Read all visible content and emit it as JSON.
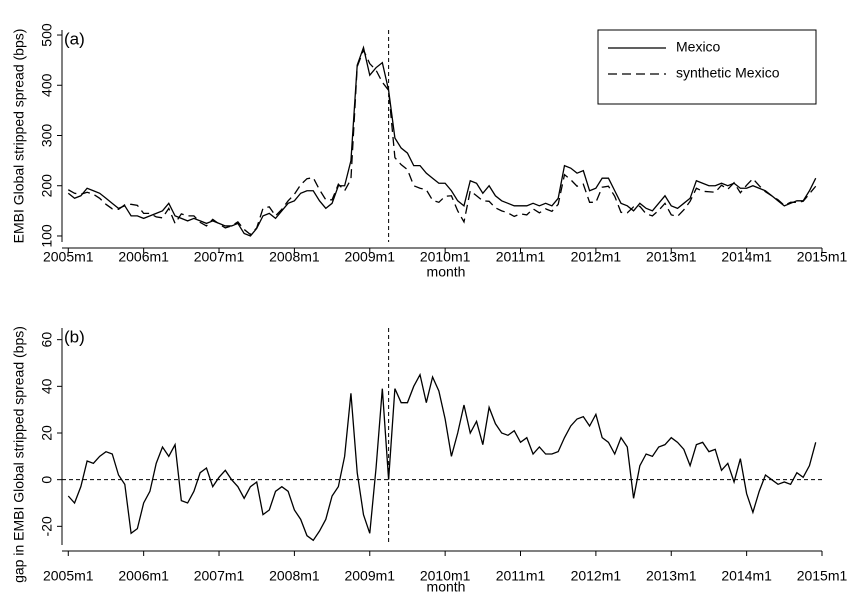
{
  "chart_data": [
    {
      "type": "line",
      "panel_label": "(a)",
      "ylabel": "EMBI Global stripped spread (bps)",
      "xlabel": "month",
      "x": [
        540,
        541,
        542,
        543,
        544,
        545,
        546,
        547,
        548,
        549,
        550,
        551,
        552,
        553,
        554,
        555,
        556,
        557,
        558,
        559,
        560,
        561,
        562,
        563,
        564,
        565,
        566,
        567,
        568,
        569,
        570,
        571,
        572,
        573,
        574,
        575,
        576,
        577,
        578,
        579,
        580,
        581,
        582,
        583,
        584,
        585,
        586,
        587,
        588,
        589,
        590,
        591,
        592,
        593,
        594,
        595,
        596,
        597,
        598,
        599,
        600,
        601,
        602,
        603,
        604,
        605,
        606,
        607,
        608,
        609,
        610,
        611,
        612,
        613,
        614,
        615,
        616,
        617,
        618,
        619,
        620,
        621,
        622,
        623,
        624,
        625,
        626,
        627,
        628,
        629,
        630,
        631,
        632,
        633,
        634,
        635,
        636,
        637,
        638,
        639,
        640,
        641,
        642,
        643,
        644,
        645,
        646,
        647,
        648,
        649,
        650,
        651,
        652,
        653,
        654,
        655,
        656,
        657,
        658,
        659
      ],
      "series": [
        {
          "name": "Mexico",
          "color": "#000000",
          "dashed": false,
          "values": [
            185,
            175,
            180,
            195,
            190,
            185,
            175,
            165,
            155,
            160,
            140,
            140,
            135,
            140,
            145,
            150,
            165,
            140,
            135,
            130,
            135,
            130,
            125,
            130,
            125,
            120,
            120,
            125,
            105,
            100,
            115,
            140,
            145,
            135,
            150,
            165,
            170,
            185,
            190,
            190,
            170,
            155,
            165,
            200,
            200,
            250,
            440,
            475,
            420,
            435,
            445,
            390,
            295,
            275,
            265,
            240,
            240,
            225,
            215,
            205,
            205,
            190,
            170,
            160,
            210,
            205,
            185,
            200,
            180,
            170,
            165,
            160,
            160,
            160,
            165,
            160,
            165,
            160,
            175,
            240,
            235,
            225,
            230,
            190,
            195,
            215,
            215,
            190,
            165,
            160,
            150,
            165,
            155,
            150,
            165,
            180,
            160,
            155,
            165,
            175,
            210,
            205,
            200,
            200,
            205,
            200,
            205,
            195,
            195,
            200,
            195,
            190,
            180,
            170,
            160,
            165,
            170,
            170,
            190,
            215
          ]
        },
        {
          "name": "synthetic Mexico",
          "color": "#000000",
          "dashed": true,
          "values": [
            192,
            185,
            183,
            187,
            183,
            175,
            163,
            154,
            153,
            162,
            163,
            161,
            145,
            145,
            138,
            136,
            155,
            125,
            144,
            140,
            140,
            127,
            120,
            133,
            124,
            116,
            120,
            128,
            113,
            103,
            116,
            155,
            158,
            140,
            153,
            170,
            183,
            202,
            214,
            216,
            192,
            172,
            172,
            203,
            190,
            213,
            437,
            470,
            443,
            430,
            406,
            390,
            256,
            242,
            232,
            200,
            195,
            192,
            171,
            167,
            179,
            180,
            150,
            128,
            190,
            180,
            170,
            169,
            156,
            150,
            146,
            139,
            144,
            142,
            154,
            146,
            154,
            149,
            163,
            222,
            212,
            199,
            203,
            167,
            167,
            197,
            199,
            179,
            147,
            146,
            158,
            159,
            144,
            140,
            151,
            165,
            142,
            139,
            152,
            169,
            195,
            189,
            188,
            187,
            201,
            193,
            206,
            186,
            201,
            214,
            200,
            188,
            180,
            172,
            161,
            167,
            167,
            169,
            184,
            199
          ]
        }
      ],
      "xlim": [
        539,
        660
      ],
      "xticks": [
        {
          "value": 540,
          "label": "2005m1"
        },
        {
          "value": 552,
          "label": "2006m1"
        },
        {
          "value": 564,
          "label": "2007m1"
        },
        {
          "value": 576,
          "label": "2008m1"
        },
        {
          "value": 588,
          "label": "2009m1"
        },
        {
          "value": 600,
          "label": "2010m1"
        },
        {
          "value": 612,
          "label": "2011m1"
        },
        {
          "value": 624,
          "label": "2012m1"
        },
        {
          "value": 636,
          "label": "2013m1"
        },
        {
          "value": 648,
          "label": "2014m1"
        },
        {
          "value": 660,
          "label": "2015m1"
        }
      ],
      "ylim": [
        88,
        510
      ],
      "yticks": [
        100,
        200,
        300,
        400,
        500
      ],
      "vline": 591,
      "legend": "top-right"
    },
    {
      "type": "line",
      "panel_label": "(b)",
      "ylabel": "gap in EMBI Global stripped spread (bps)",
      "xlabel": "month",
      "x": [
        540,
        541,
        542,
        543,
        544,
        545,
        546,
        547,
        548,
        549,
        550,
        551,
        552,
        553,
        554,
        555,
        556,
        557,
        558,
        559,
        560,
        561,
        562,
        563,
        564,
        565,
        566,
        567,
        568,
        569,
        570,
        571,
        572,
        573,
        574,
        575,
        576,
        577,
        578,
        579,
        580,
        581,
        582,
        583,
        584,
        585,
        586,
        587,
        588,
        589,
        590,
        591,
        592,
        593,
        594,
        595,
        596,
        597,
        598,
        599,
        600,
        601,
        602,
        603,
        604,
        605,
        606,
        607,
        608,
        609,
        610,
        611,
        612,
        613,
        614,
        615,
        616,
        617,
        618,
        619,
        620,
        621,
        622,
        623,
        624,
        625,
        626,
        627,
        628,
        629,
        630,
        631,
        632,
        633,
        634,
        635,
        636,
        637,
        638,
        639,
        640,
        641,
        642,
        643,
        644,
        645,
        646,
        647,
        648,
        649,
        650,
        651,
        652,
        653,
        654,
        655,
        656,
        657,
        658,
        659
      ],
      "series": [
        {
          "color": "#000000",
          "dashed": false,
          "values": [
            -7,
            -10,
            -3,
            8,
            7,
            10,
            12,
            11,
            2,
            -2,
            -23,
            -21,
            -10,
            -5,
            7,
            14,
            10,
            15,
            -9,
            -10,
            -5,
            3,
            5,
            -3,
            1,
            4,
            0,
            -3,
            -8,
            -3,
            -1,
            -15,
            -13,
            -5,
            -3,
            -5,
            -13,
            -17,
            -24,
            -26,
            -22,
            -17,
            -7,
            -3,
            10,
            37,
            3,
            -15,
            -23,
            5,
            39,
            0,
            39,
            33,
            33,
            40,
            45,
            33,
            44,
            38,
            26,
            10,
            20,
            32,
            20,
            25,
            15,
            31,
            24,
            20,
            19,
            21,
            16,
            18,
            11,
            14,
            11,
            11,
            12,
            18,
            23,
            26,
            27,
            23,
            28,
            18,
            16,
            11,
            18,
            14,
            -8,
            6,
            11,
            10,
            14,
            15,
            18,
            16,
            13,
            6,
            15,
            16,
            12,
            13,
            4,
            7,
            -1,
            9,
            -6,
            -14,
            -5,
            2,
            0,
            -2,
            -1,
            -2,
            3,
            1,
            6,
            16
          ]
        }
      ],
      "xlim": [
        539,
        660
      ],
      "xticks": [
        {
          "value": 540,
          "label": "2005m1"
        },
        {
          "value": 552,
          "label": "2006m1"
        },
        {
          "value": 564,
          "label": "2007m1"
        },
        {
          "value": 576,
          "label": "2008m1"
        },
        {
          "value": 588,
          "label": "2009m1"
        },
        {
          "value": 600,
          "label": "2010m1"
        },
        {
          "value": 612,
          "label": "2011m1"
        },
        {
          "value": 624,
          "label": "2012m1"
        },
        {
          "value": 636,
          "label": "2013m1"
        },
        {
          "value": 648,
          "label": "2014m1"
        },
        {
          "value": 660,
          "label": "2015m1"
        }
      ],
      "ylim": [
        -28,
        65
      ],
      "yticks": [
        -20,
        0,
        20,
        40,
        60
      ],
      "vline": 591,
      "hline": 0
    }
  ]
}
